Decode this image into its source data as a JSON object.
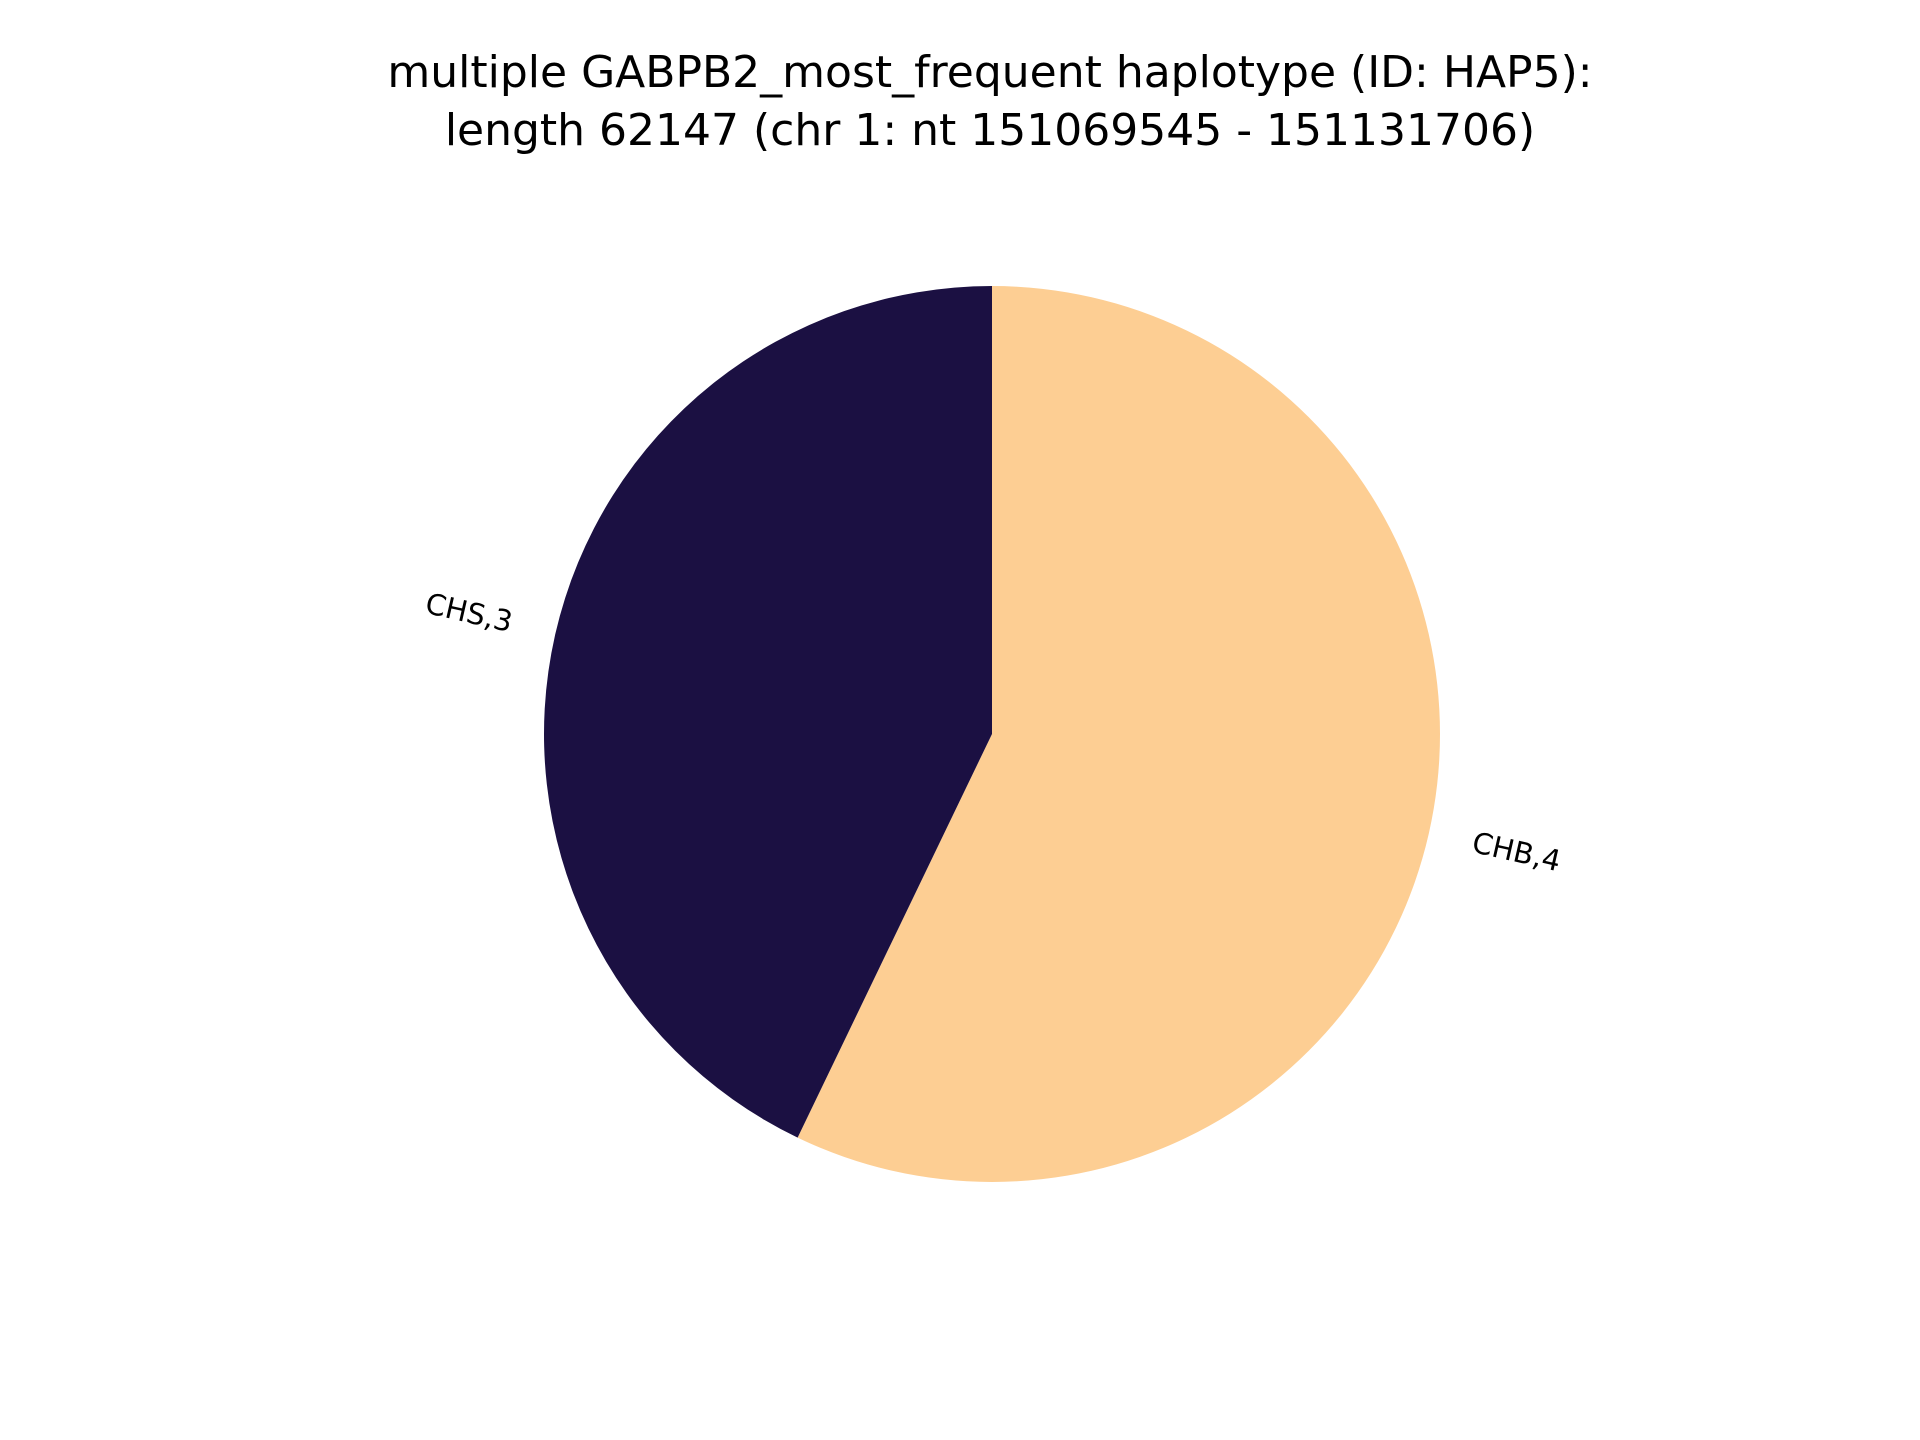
{
  "chart_data": {
    "type": "pie",
    "title_lines": [
      "multiple GABPB2_most_frequent haplotype (ID: HAP5):",
      "length 62147 (chr 1: nt 151069545 - 151131706)"
    ],
    "slices": [
      {
        "label": "CHB,4",
        "value": 4,
        "color": "#fdce93"
      },
      {
        "label": "CHS,3",
        "value": 3,
        "color": "#1b1042"
      }
    ],
    "start_angle": "top",
    "direction": "clockwise",
    "legend": "none"
  }
}
